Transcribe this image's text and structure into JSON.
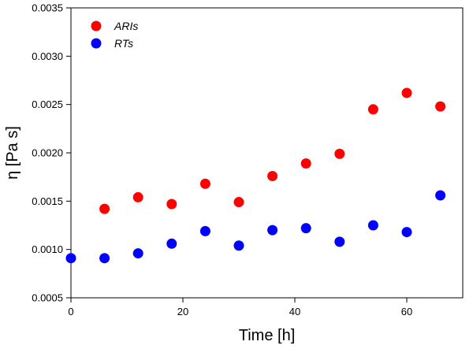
{
  "chart_data": {
    "type": "scatter",
    "xlabel": "Time [h]",
    "ylabel": "η [Pa s]",
    "xlim": [
      0,
      70
    ],
    "ylim": [
      0.0005,
      0.0035
    ],
    "x_ticks": [
      0,
      20,
      40,
      60
    ],
    "x_tick_labels": [
      "0",
      "20",
      "40",
      "60"
    ],
    "y_ticks": [
      0.0005,
      0.001,
      0.0015,
      0.002,
      0.0025,
      0.003,
      0.0035
    ],
    "y_tick_labels": [
      "0.0005",
      "0.0010",
      "0.0015",
      "0.0020",
      "0.0025",
      "0.0030",
      "0.0035"
    ],
    "grid": false,
    "legend_position": "top-left",
    "series": [
      {
        "name": "ARIs",
        "color": "#ff0000",
        "x": [
          6,
          12,
          18,
          24,
          30,
          36,
          42,
          48,
          54,
          60,
          66
        ],
        "y": [
          0.00142,
          0.00154,
          0.00147,
          0.00168,
          0.00149,
          0.00176,
          0.00189,
          0.00199,
          0.00245,
          0.00262,
          0.00248
        ]
      },
      {
        "name": "RTs",
        "color": "#0000ff",
        "x": [
          0,
          6,
          12,
          18,
          24,
          30,
          36,
          42,
          48,
          54,
          60,
          66
        ],
        "y": [
          0.00091,
          0.00091,
          0.00096,
          0.00106,
          0.00119,
          0.00104,
          0.0012,
          0.00122,
          0.00108,
          0.00125,
          0.00118,
          0.00156
        ]
      }
    ]
  }
}
